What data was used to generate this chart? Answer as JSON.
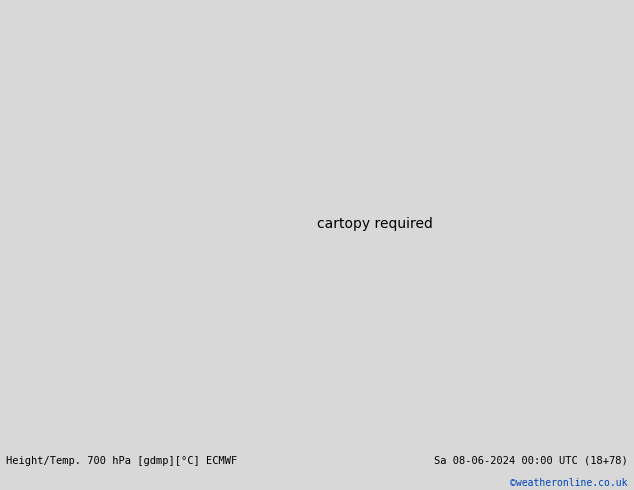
{
  "title_left": "Height/Temp. 700 hPa [gdmp][°C] ECMWF",
  "title_right": "Sa 08-06-2024 00:00 UTC (18+78)",
  "credit": "©weatheronline.co.uk",
  "background_color": "#d8d8d8",
  "land_color": "#b8e896",
  "ocean_color": "#d8d8d8",
  "border_color": "#888888",
  "fig_width": 6.34,
  "fig_height": 4.9,
  "dpi": 100,
  "lon_min": -90,
  "lon_max": -20,
  "lat_min": -70,
  "lat_max": 15,
  "title_fontsize": 7.5,
  "credit_fontsize": 7,
  "credit_color": "#0044bb"
}
